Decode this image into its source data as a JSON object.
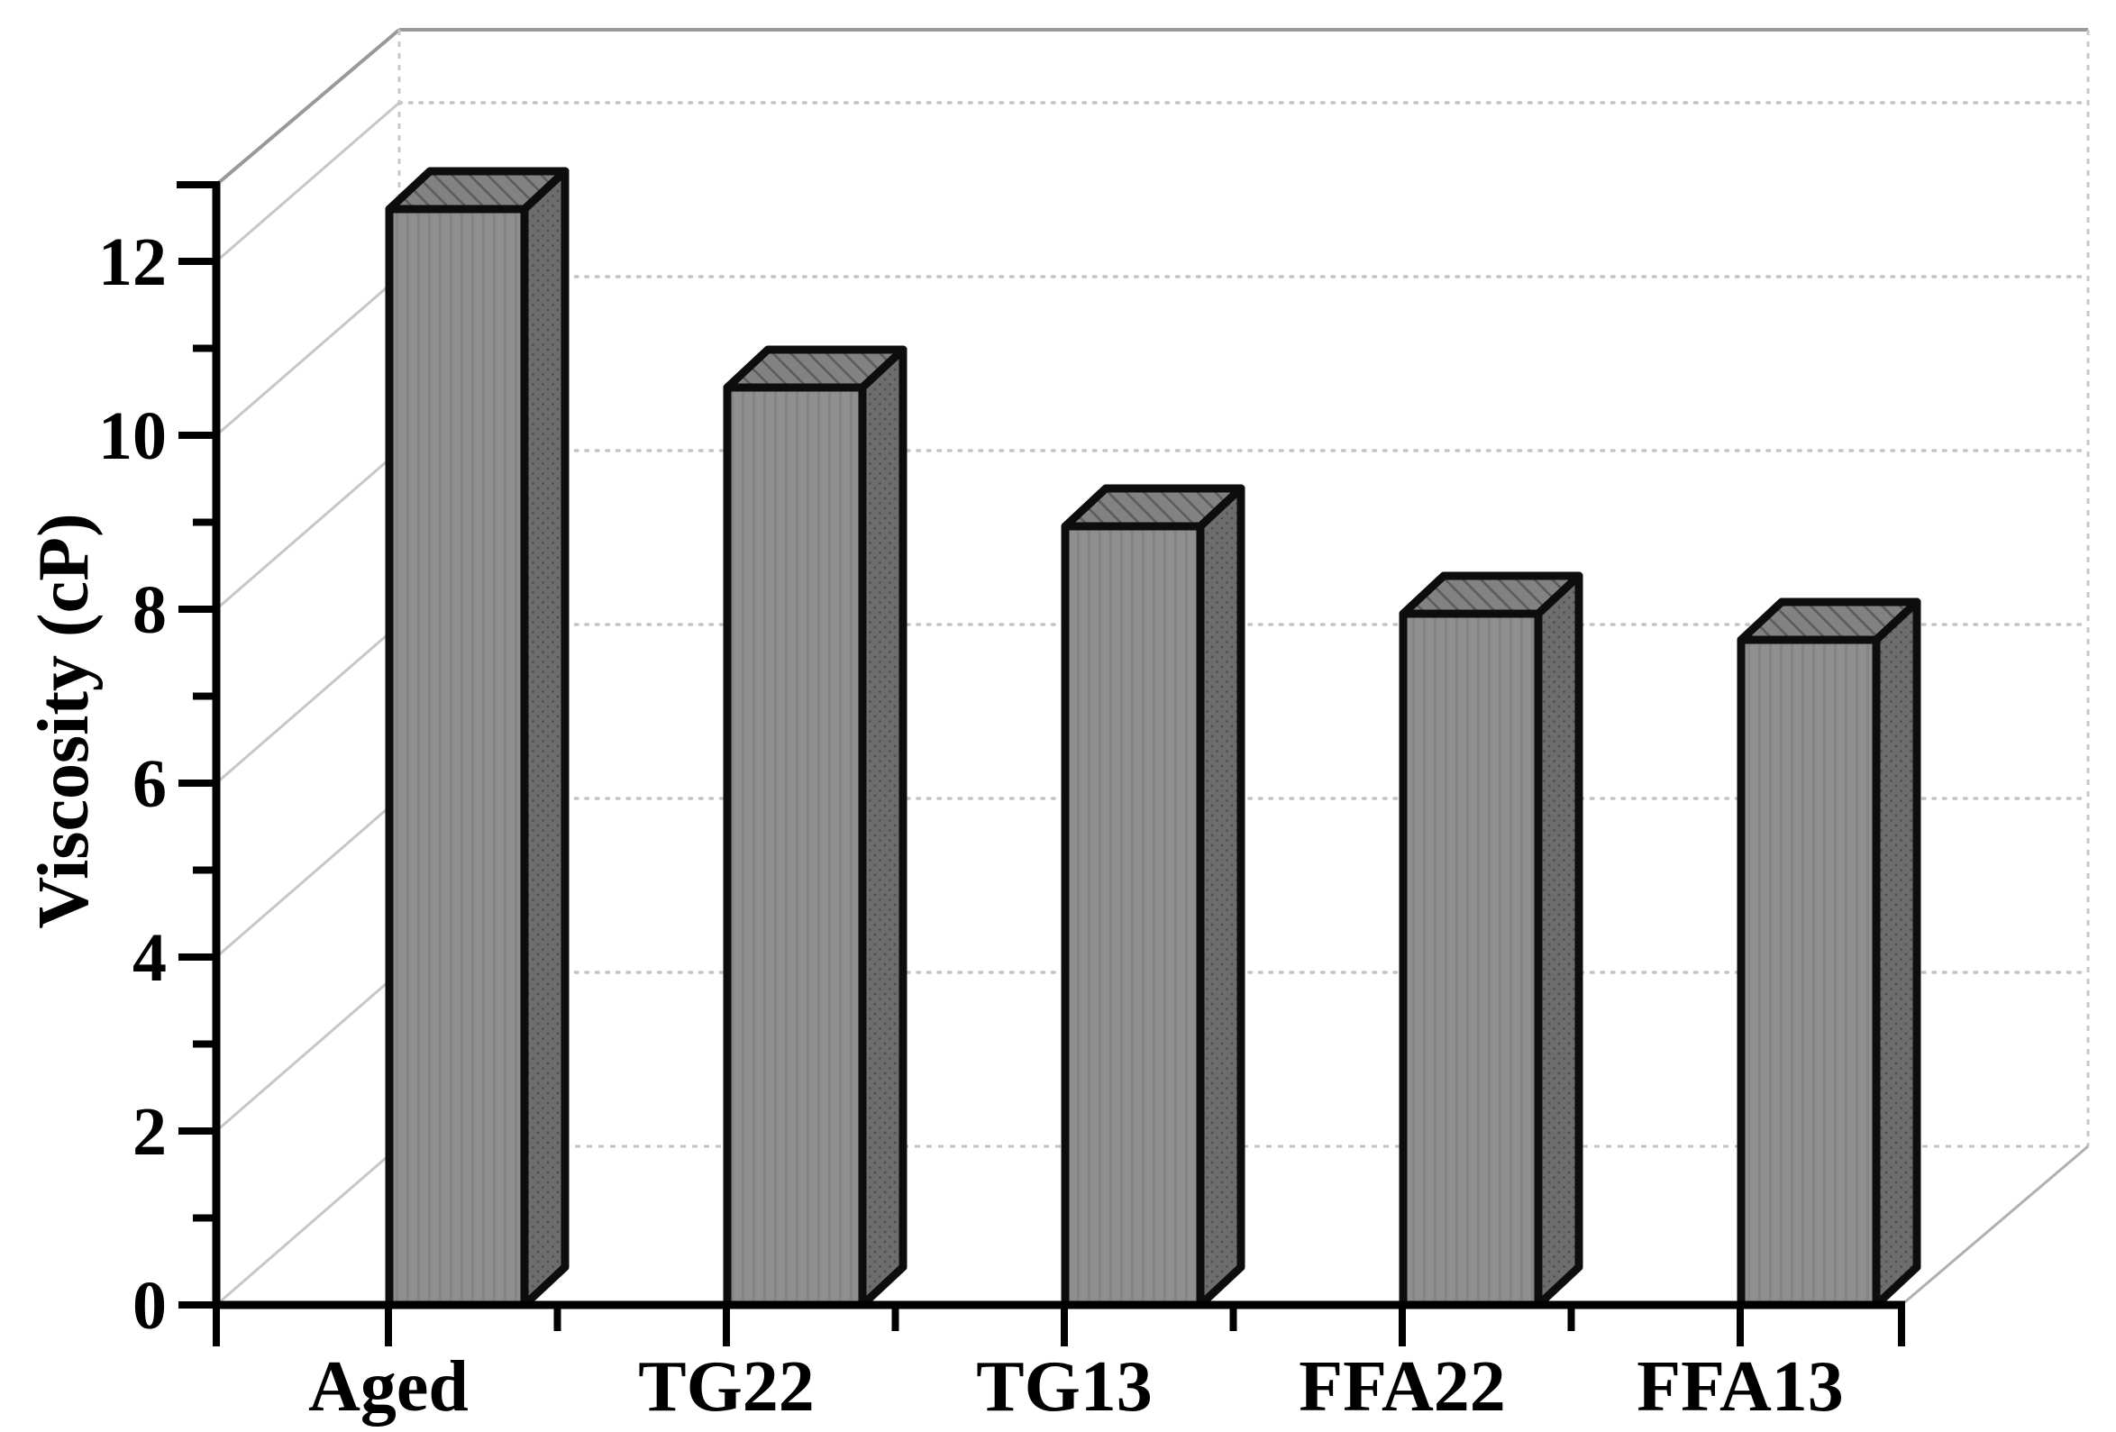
{
  "chart_data": {
    "type": "bar",
    "projection": "3d-column",
    "title": "",
    "xlabel": "",
    "ylabel": "Viscosity (cP)",
    "categories": [
      "Aged",
      "TG22",
      "TG13",
      "FFA22",
      "FFA13"
    ],
    "values": [
      12.6,
      10.55,
      8.95,
      7.95,
      7.65
    ],
    "series_name": "Viscosity",
    "ylim": [
      0,
      13
    ],
    "y_major_ticks": [
      0,
      2,
      4,
      6,
      8,
      10,
      12
    ],
    "y_tick_labels": [
      "0",
      "2",
      "4",
      "6",
      "8",
      "10",
      "12"
    ],
    "y_minor_tick_step": 1,
    "grid": "horizontal dotted lines on back wall, diagonal lines on left wall",
    "legend": "none",
    "colors": {
      "bar_front": "#8f8f8f",
      "bar_front_stripe": "#848484",
      "bar_side": "#6d6d6d",
      "bar_side_dot": "#4f4f4f",
      "bar_top": "#828282",
      "bar_top_hatch": "#5c5c5c",
      "bar_outline": "#0d0d0d",
      "axis": "#000000",
      "frame": "#999999",
      "gridline": "#c3c3c3",
      "wall_diagonal": "#c7c7c7",
      "floor_edge": "#b0b0b0",
      "background": "#ffffff",
      "text": "#000000"
    }
  }
}
